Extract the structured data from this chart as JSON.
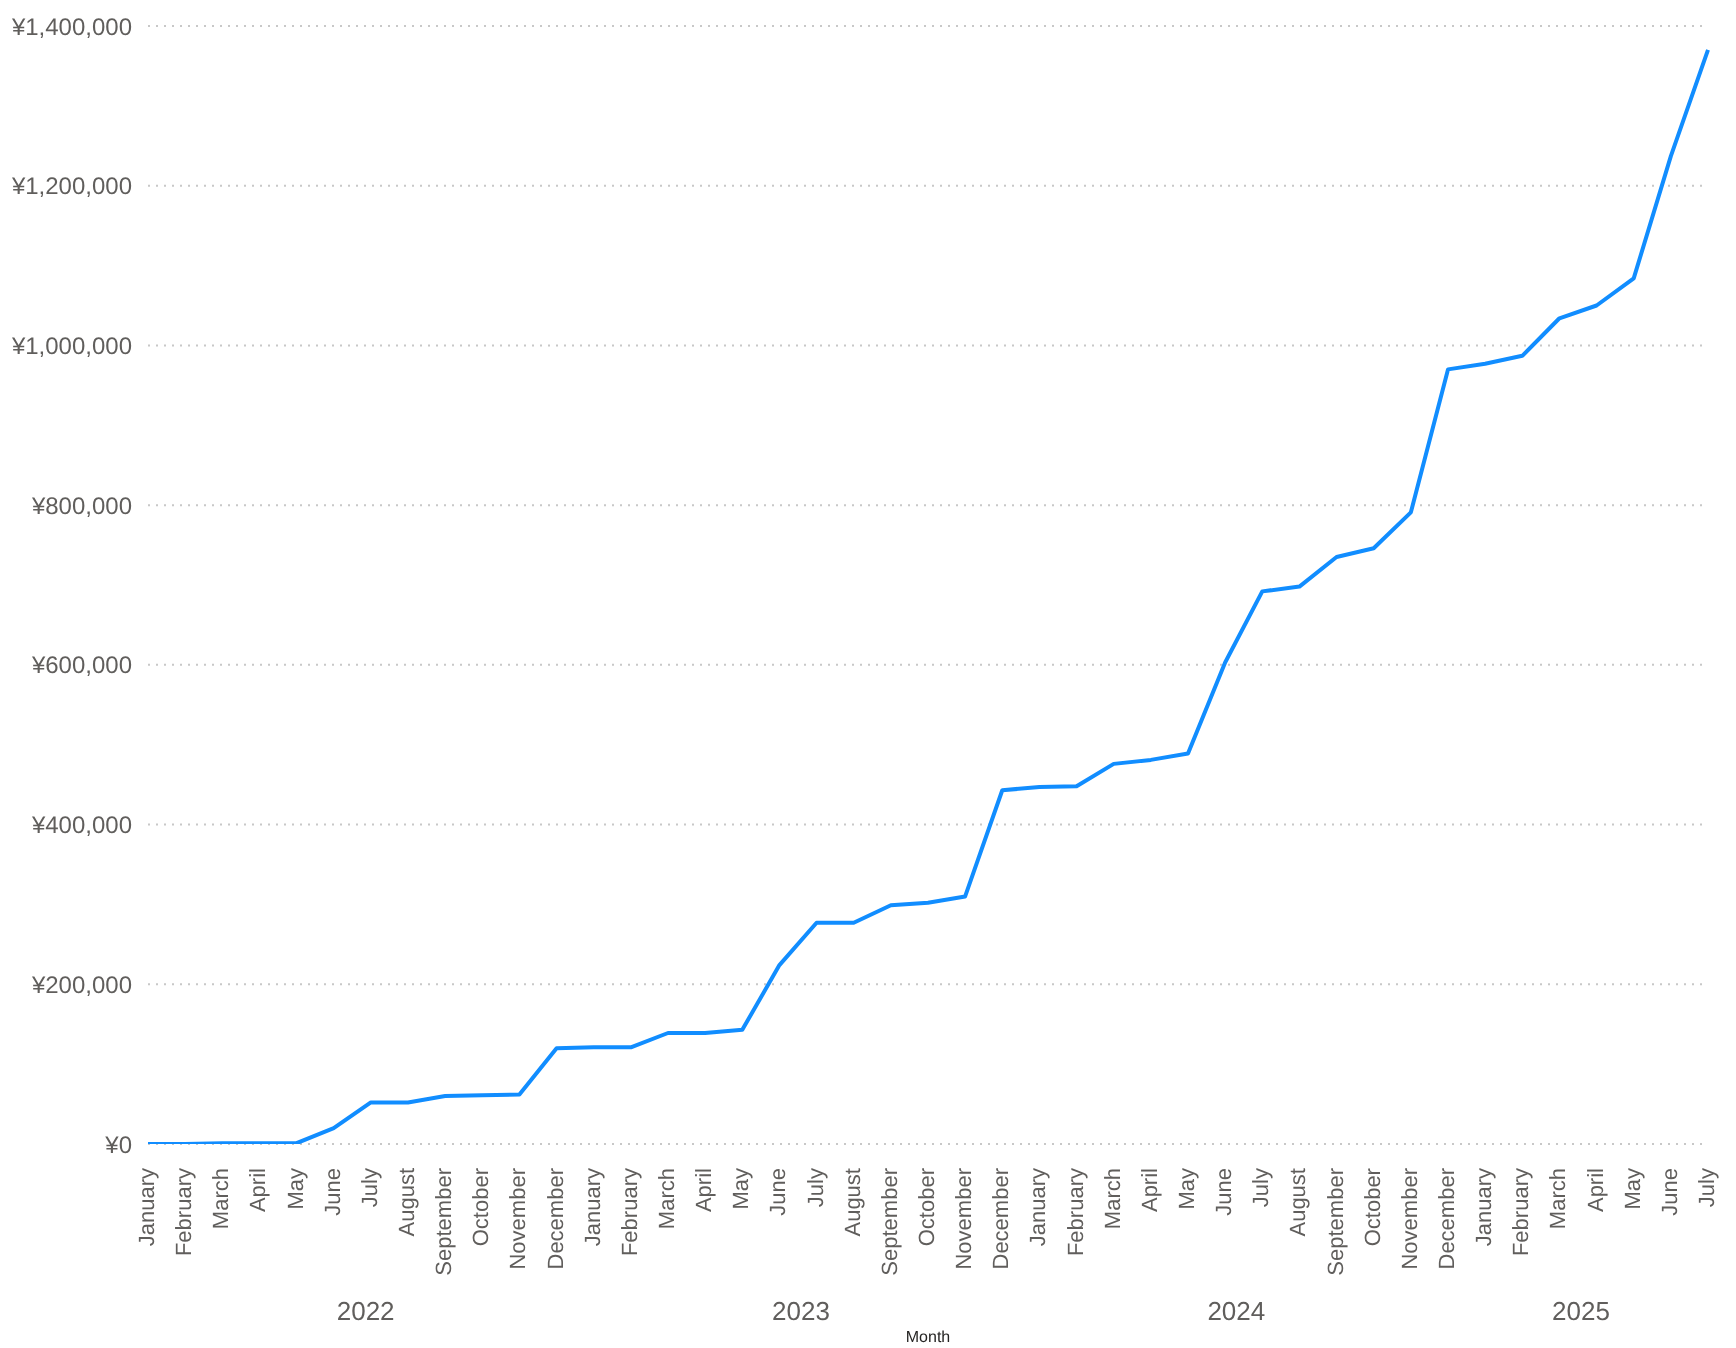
{
  "chart_data": {
    "type": "line",
    "xlabel": "Month",
    "categories": [
      "January",
      "February",
      "March",
      "April",
      "May",
      "June",
      "July",
      "August",
      "September",
      "October",
      "November",
      "December",
      "January",
      "February",
      "March",
      "April",
      "May",
      "June",
      "July",
      "August",
      "September",
      "October",
      "November",
      "December",
      "January",
      "February",
      "March",
      "April",
      "May",
      "June",
      "July",
      "August",
      "September",
      "October",
      "November",
      "December",
      "January",
      "February",
      "March",
      "April",
      "May",
      "June",
      "July"
    ],
    "series": [
      {
        "color": "#118dff",
        "values": [
          0,
          0,
          1000,
          1000,
          1000,
          20000,
          52000,
          52000,
          60000,
          61000,
          62000,
          120000,
          121000,
          121000,
          139000,
          139000,
          143000,
          224000,
          277000,
          277000,
          299000,
          302000,
          310000,
          443000,
          447000,
          448000,
          476000,
          481000,
          489000,
          603000,
          692000,
          698000,
          735000,
          746000,
          791000,
          970000,
          977000,
          987000,
          1034000,
          1050000,
          1084000,
          1237000,
          1370000
        ]
      }
    ],
    "annotations": [
      "2022",
      "2023",
      "2024",
      "2025"
    ],
    "ylim": [
      0,
      1400000
    ],
    "yticks": [
      {
        "value": 0,
        "label": "¥0"
      },
      {
        "value": 200000,
        "label": "¥200,000"
      },
      {
        "value": 400000,
        "label": "¥400,000"
      },
      {
        "value": 600000,
        "label": "¥600,000"
      },
      {
        "value": 800000,
        "label": "¥800,000"
      },
      {
        "value": 1000000,
        "label": "¥1,000,000"
      },
      {
        "value": 1200000,
        "label": "¥1,200,000"
      },
      {
        "value": 1400000,
        "label": "¥1,400,000"
      }
    ],
    "grid": "y",
    "legend": false,
    "marker": "none",
    "line_style": "solid"
  }
}
